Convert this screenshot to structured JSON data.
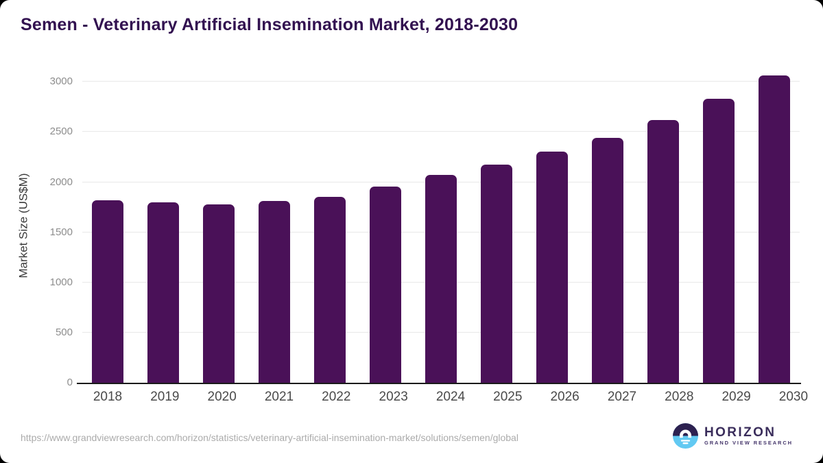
{
  "page": {
    "title": "Semen - Veterinary Artificial Insemination Market, 2018-2030"
  },
  "chart_data": {
    "type": "bar",
    "title": "Semen - Veterinary Artificial Insemination Market, 2018-2030",
    "categories": [
      "2018",
      "2019",
      "2020",
      "2021",
      "2022",
      "2023",
      "2024",
      "2025",
      "2026",
      "2027",
      "2028",
      "2029",
      "2030"
    ],
    "values": [
      1820,
      1800,
      1780,
      1810,
      1855,
      1955,
      2070,
      2175,
      2305,
      2445,
      2620,
      2830,
      3065
    ],
    "xlabel": "",
    "ylabel": "Market Size (US$M)",
    "ylim": [
      0,
      3142
    ],
    "yticks": [
      0,
      500,
      1000,
      1500,
      2000,
      2500,
      3000
    ],
    "grid": "horizontal",
    "legend": "none",
    "bar_color": "#4a1158"
  },
  "footer": {
    "source_url": "https://www.grandviewresearch.com/horizon/statistics/veterinary-artificial-insemination-market/solutions/semen/global",
    "logo_name": "HORIZON",
    "logo_subtitle": "GRAND VIEW RESEARCH"
  },
  "colors": {
    "bar": "#4a1158",
    "title_text": "#321150",
    "axis_line": "#1a1a1a",
    "gridline": "#e8e8e8",
    "y_tick_text": "#8d8d8d",
    "x_tick_text": "#4a4a4a",
    "url_text": "#ababab",
    "logo_dark": "#2d2150",
    "logo_blue": "#62c9f2"
  }
}
